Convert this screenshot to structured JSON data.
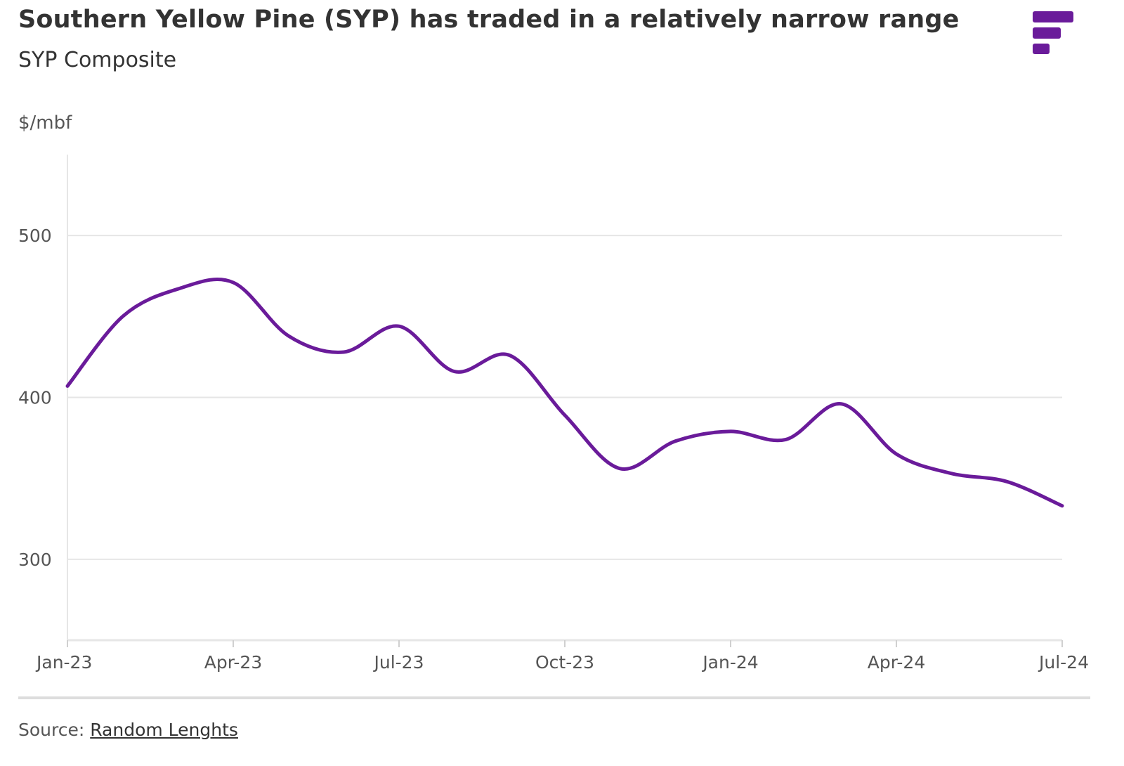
{
  "header": {
    "title": "Southern Yellow Pine (SYP) has traded in a relatively narrow range",
    "subtitle": "SYP Composite"
  },
  "logo": {
    "icon": "brand-logo-icon",
    "color": "#6a1b9a"
  },
  "chart_data": {
    "type": "line",
    "title": "Southern Yellow Pine (SYP) has traded in a relatively narrow range",
    "subtitle": "SYP Composite",
    "ylabel": "$/mbf",
    "xlabel": "",
    "ylim": [
      250,
      550
    ],
    "yticks": [
      300,
      400,
      500
    ],
    "xtick_labels": [
      "Jan-23",
      "Apr-23",
      "Jul-23",
      "Oct-23",
      "Jan-24",
      "Apr-24",
      "Jul-24"
    ],
    "grid": true,
    "legend": "none",
    "series_color": "#6a1b9a",
    "series": [
      {
        "x": [
          "Jan-23",
          "Feb-23",
          "Mar-23",
          "Apr-23",
          "May-23",
          "Jun-23",
          "Jul-23",
          "Aug-23",
          "Sep-23",
          "Oct-23",
          "Nov-23",
          "Dec-23",
          "Jan-24",
          "Feb-24",
          "Mar-24",
          "Apr-24",
          "May-24",
          "Jun-24",
          "Jul-24"
        ],
        "values": [
          407,
          450,
          467,
          471,
          438,
          428,
          444,
          416,
          426,
          389,
          356,
          373,
          379,
          374,
          396,
          365,
          353,
          348,
          333
        ]
      }
    ]
  },
  "footer": {
    "source_label": "Source: ",
    "source_link": "Random Lenghts"
  }
}
